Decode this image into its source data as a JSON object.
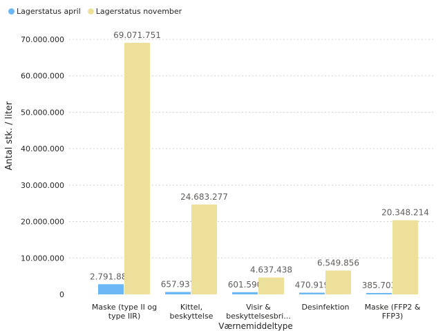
{
  "colors": {
    "april": "#6cb7f5",
    "november": "#ede09b",
    "text": "#252423",
    "label": "#605e5c",
    "grid": "#d0d0d0"
  },
  "chart_data": {
    "type": "bar",
    "categories": [
      [
        "Maske (type II og",
        "type IIR)"
      ],
      [
        "Kittel,",
        "beskyttelse"
      ],
      [
        "Visir &",
        "beskyttelsesbri..."
      ],
      [
        "Desinfektion"
      ],
      [
        "Maske (FFP2 &",
        "FFP3)"
      ]
    ],
    "series": [
      {
        "name": "Lagerstatus april",
        "values": [
          2791884,
          657937,
          601590,
          470919,
          385703
        ],
        "labels": [
          "2.791.884",
          "657.937",
          "601.590",
          "470.919",
          "385.703"
        ]
      },
      {
        "name": "Lagerstatus november",
        "values": [
          69071751,
          24683277,
          4637438,
          6549856,
          20348214
        ],
        "labels": [
          "69.071.751",
          "24.683.277",
          "4.637.438",
          "6.549.856",
          "20.348.214"
        ]
      }
    ],
    "xlabel": "Værnemiddeltype",
    "ylabel": "Antal stk. / liter",
    "ylim": [
      0,
      70000000
    ],
    "yticks": [
      0,
      10000000,
      20000000,
      30000000,
      40000000,
      50000000,
      60000000,
      70000000
    ],
    "ytick_labels": [
      "0",
      "10.000.000",
      "20.000.000",
      "30.000.000",
      "40.000.000",
      "50.000.000",
      "60.000.000",
      "70.000.000"
    ],
    "grid": true,
    "legend_position": "top-left"
  }
}
